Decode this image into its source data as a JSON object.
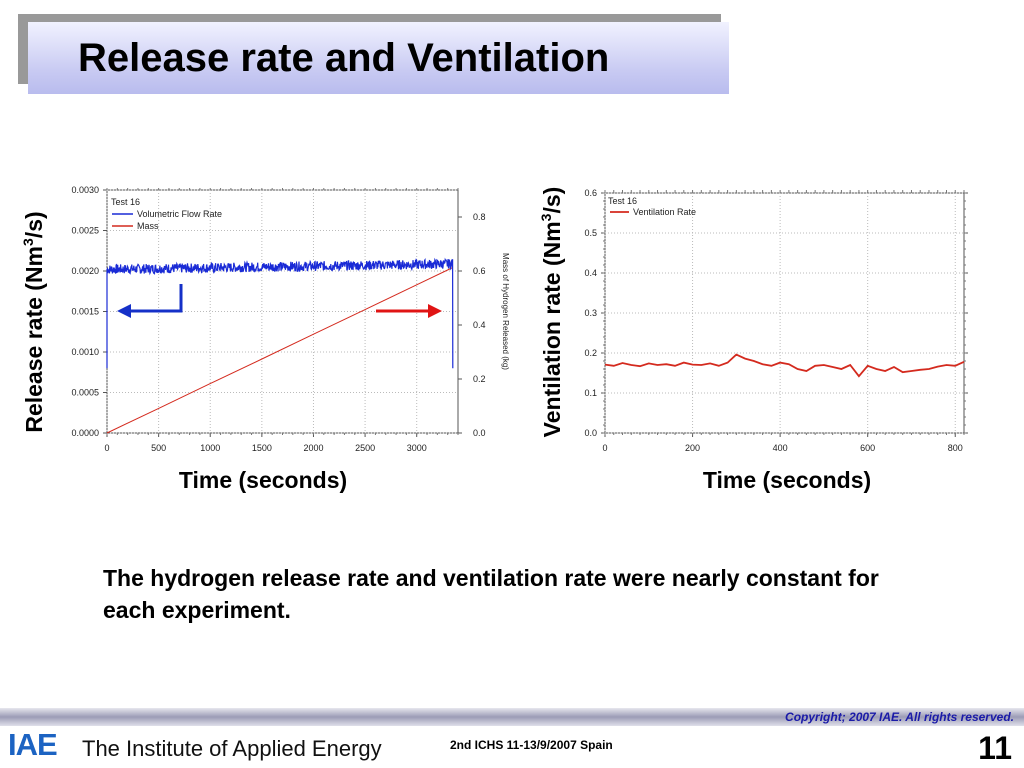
{
  "slide": {
    "title": "Release rate and Ventilation",
    "caption": "The hydrogen release rate and ventilation rate were nearly constant for each experiment.",
    "chart1_ylabel_prefix": "Release rate (Nm",
    "chart1_ylabel_sup": "3",
    "chart1_ylabel_suffix": "/s)",
    "chart1_xlabel": "Time (seconds)",
    "chart2_ylabel_prefix": "Ventilation rate (Nm",
    "chart2_ylabel_sup": "3",
    "chart2_ylabel_suffix": "/s)",
    "chart2_xlabel": "Time (seconds)"
  },
  "footer": {
    "copyright": "Copyright; 2007 IAE. All rights reserved.",
    "logo_text": "IAE",
    "institute": "The Institute of Applied Energy",
    "conference": "2nd  ICHS 11-13/9/2007 Spain",
    "page_number": "11"
  },
  "colors": {
    "flow_series": "#1a2bd6",
    "mass_series": "#d42a1e",
    "ventilation_series": "#d42a1e",
    "left_arrow": "#1530c8",
    "right_arrow": "#e01414"
  },
  "chart_data": [
    {
      "type": "line",
      "annotation": "Test 16",
      "x": [
        0,
        500,
        1000,
        1500,
        2000,
        2500,
        3000,
        3350
      ],
      "xticks": [
        "0",
        "500",
        "1000",
        "1500",
        "2000",
        "2500",
        "3000"
      ],
      "xlim": [
        0,
        3400
      ],
      "ylim": [
        0,
        0.003
      ],
      "yticks": [
        "0.0000",
        "0.0005",
        "0.0010",
        "0.0015",
        "0.0020",
        "0.0025",
        "0.0030"
      ],
      "y2label": "Mass of Hydrogen Released (kg)",
      "y2lim": [
        0,
        0.9
      ],
      "y2ticks": [
        "0.0",
        "0.2",
        "0.4",
        "0.6",
        "0.8"
      ],
      "arrows": [
        "left: Volumetric Flow Rate uses left axis",
        "right: Mass uses right axis"
      ],
      "series": [
        {
          "name": "Volumetric Flow Rate",
          "axis": "left",
          "values": [
            0.00202,
            0.00203,
            0.00204,
            0.00205,
            0.00206,
            0.00207,
            0.00208,
            0.00209
          ]
        },
        {
          "name": "Mass",
          "axis": "right",
          "values": [
            0.0,
            0.091,
            0.183,
            0.274,
            0.366,
            0.457,
            0.549,
            0.613
          ]
        }
      ]
    },
    {
      "type": "line",
      "annotation": "Test 16",
      "x": [
        0,
        20,
        40,
        60,
        80,
        100,
        120,
        140,
        160,
        180,
        200,
        220,
        240,
        260,
        280,
        300,
        320,
        340,
        360,
        380,
        400,
        420,
        440,
        460,
        480,
        500,
        520,
        540,
        560,
        580,
        600,
        620,
        640,
        660,
        680,
        700,
        720,
        740,
        760,
        780,
        800,
        820
      ],
      "xticks": [
        "0",
        "200",
        "400",
        "600",
        "800"
      ],
      "xlim": [
        0,
        820
      ],
      "ylim": [
        0,
        0.6
      ],
      "yticks": [
        "0.0",
        "0.1",
        "0.2",
        "0.3",
        "0.4",
        "0.5",
        "0.6"
      ],
      "series": [
        {
          "name": "Ventilation Rate",
          "values": [
            0.171,
            0.168,
            0.175,
            0.17,
            0.167,
            0.174,
            0.17,
            0.172,
            0.168,
            0.176,
            0.171,
            0.17,
            0.174,
            0.168,
            0.176,
            0.196,
            0.186,
            0.18,
            0.172,
            0.168,
            0.176,
            0.172,
            0.16,
            0.155,
            0.168,
            0.17,
            0.165,
            0.16,
            0.17,
            0.142,
            0.168,
            0.16,
            0.155,
            0.165,
            0.152,
            0.155,
            0.158,
            0.16,
            0.166,
            0.17,
            0.168,
            0.178
          ]
        }
      ]
    }
  ]
}
